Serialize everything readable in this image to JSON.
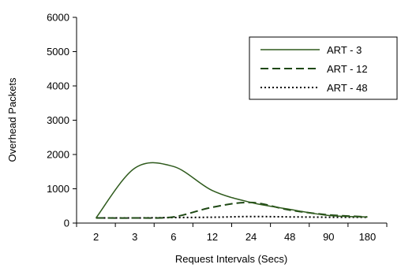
{
  "chart_data": {
    "type": "line",
    "title": "",
    "xlabel": "Request Intervals (Secs)",
    "ylabel": "Overhead Packets",
    "categories": [
      "2",
      "3",
      "6",
      "12",
      "24",
      "48",
      "90",
      "180"
    ],
    "ylim": [
      0,
      6000
    ],
    "yticks": [
      0,
      1000,
      2000,
      3000,
      4000,
      5000,
      6000
    ],
    "grid": false,
    "legend_position": "top-right",
    "series": [
      {
        "name": "ART - 3",
        "values": [
          150,
          1600,
          1650,
          950,
          600,
          400,
          220,
          180
        ],
        "style": "solid",
        "color": "#2e5a1c"
      },
      {
        "name": "ART - 12",
        "values": [
          150,
          150,
          180,
          460,
          600,
          380,
          240,
          180
        ],
        "style": "dashed",
        "color": "#1e4814"
      },
      {
        "name": "ART - 48",
        "values": [
          150,
          150,
          160,
          170,
          190,
          180,
          170,
          170
        ],
        "style": "dotted",
        "color": "#000000"
      }
    ]
  }
}
